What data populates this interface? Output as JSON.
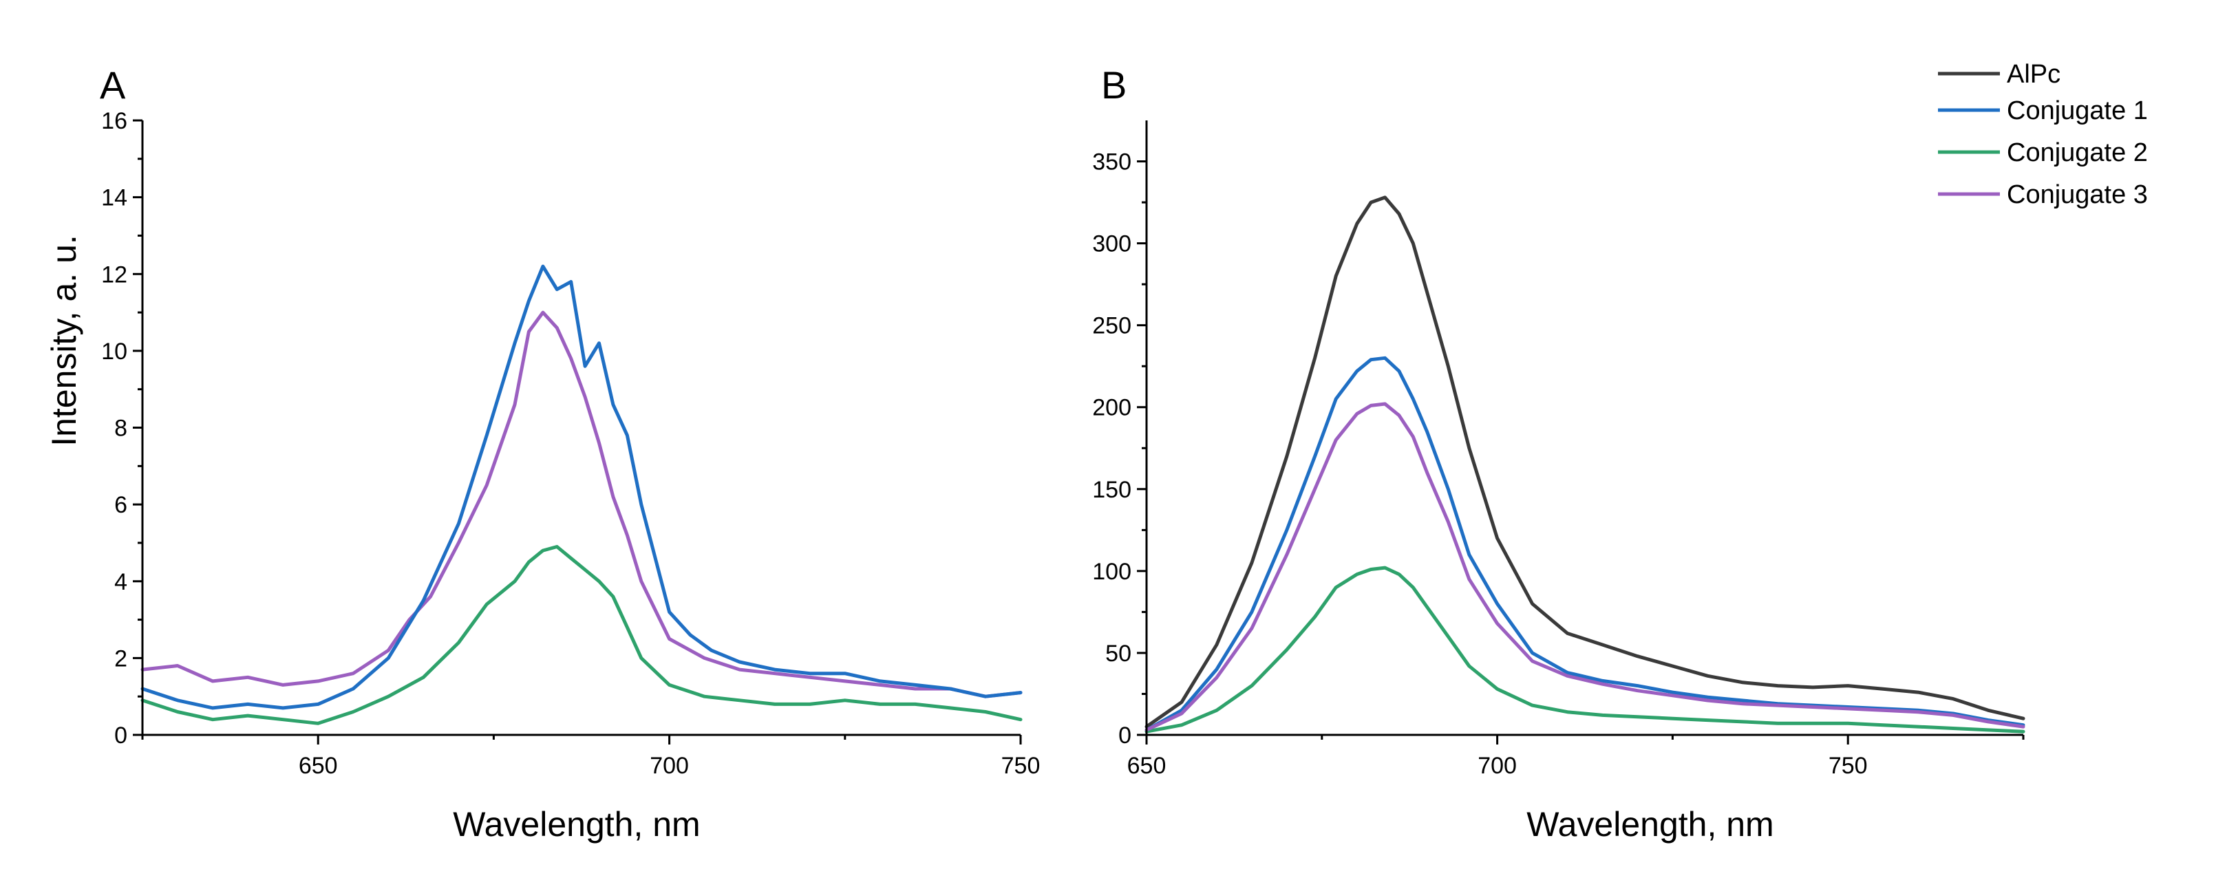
{
  "chart_data": [
    {
      "type": "line",
      "panel_label": "A",
      "xlabel": "Wavelength, nm",
      "ylabel": "Intensity, a. u.",
      "xlim": [
        625,
        750
      ],
      "ylim": [
        0,
        16
      ],
      "xticks": [
        650,
        700,
        750
      ],
      "yticks": [
        0,
        2,
        4,
        6,
        8,
        10,
        12,
        14,
        16
      ],
      "series": [
        {
          "name": "Conjugate 3",
          "color": "#9b5fc0",
          "x": [
            625,
            630,
            635,
            640,
            645,
            650,
            655,
            660,
            663,
            666,
            670,
            674,
            678,
            680,
            682,
            684,
            686,
            688,
            690,
            692,
            694,
            696,
            700,
            705,
            710,
            715,
            720,
            725,
            730,
            735,
            740,
            745,
            750
          ],
          "values": [
            1.7,
            1.8,
            1.4,
            1.5,
            1.3,
            1.4,
            1.6,
            2.2,
            3.0,
            3.6,
            5.0,
            6.5,
            8.6,
            10.5,
            11.0,
            10.6,
            9.8,
            8.8,
            7.6,
            6.2,
            5.2,
            4.0,
            2.5,
            2.0,
            1.7,
            1.6,
            1.5,
            1.4,
            1.3,
            1.2,
            1.2,
            1.0,
            1.1
          ]
        },
        {
          "name": "Conjugate 1",
          "color": "#1f6fc4",
          "x": [
            625,
            630,
            635,
            640,
            645,
            650,
            655,
            660,
            665,
            670,
            674,
            678,
            680,
            682,
            684,
            686,
            688,
            690,
            692,
            694,
            696,
            698,
            700,
            703,
            706,
            710,
            715,
            720,
            725,
            730,
            735,
            740,
            745,
            750
          ],
          "values": [
            1.2,
            0.9,
            0.7,
            0.8,
            0.7,
            0.8,
            1.2,
            2.0,
            3.5,
            5.5,
            7.8,
            10.2,
            11.3,
            12.2,
            11.6,
            11.8,
            9.6,
            10.2,
            8.6,
            7.8,
            6.0,
            4.6,
            3.2,
            2.6,
            2.2,
            1.9,
            1.7,
            1.6,
            1.6,
            1.4,
            1.3,
            1.2,
            1.0,
            1.1
          ]
        },
        {
          "name": "Conjugate 2",
          "color": "#2ea26b",
          "x": [
            625,
            630,
            635,
            640,
            645,
            650,
            655,
            660,
            665,
            670,
            674,
            678,
            680,
            682,
            684,
            686,
            688,
            690,
            692,
            694,
            696,
            700,
            705,
            710,
            715,
            720,
            725,
            730,
            735,
            740,
            745,
            750
          ],
          "values": [
            0.9,
            0.6,
            0.4,
            0.5,
            0.4,
            0.3,
            0.6,
            1.0,
            1.5,
            2.4,
            3.4,
            4.0,
            4.5,
            4.8,
            4.9,
            4.6,
            4.3,
            4.0,
            3.6,
            2.8,
            2.0,
            1.3,
            1.0,
            0.9,
            0.8,
            0.8,
            0.9,
            0.8,
            0.8,
            0.7,
            0.6,
            0.4
          ]
        }
      ]
    },
    {
      "type": "line",
      "panel_label": "B",
      "xlabel": "Wavelength, nm",
      "ylabel": "",
      "xlim": [
        650,
        775
      ],
      "ylim": [
        0,
        375
      ],
      "xticks": [
        650,
        700,
        750
      ],
      "yticks": [
        0,
        50,
        100,
        150,
        200,
        250,
        300,
        350
      ],
      "legend_position": "top-right",
      "series": [
        {
          "name": "AlPc",
          "color": "#3a3a3a",
          "x": [
            650,
            655,
            660,
            665,
            670,
            674,
            677,
            680,
            682,
            684,
            686,
            688,
            690,
            693,
            696,
            700,
            705,
            710,
            715,
            720,
            725,
            730,
            735,
            740,
            745,
            750,
            755,
            760,
            765,
            770,
            775
          ],
          "values": [
            5,
            20,
            55,
            105,
            170,
            230,
            280,
            312,
            325,
            328,
            318,
            300,
            270,
            225,
            175,
            120,
            80,
            62,
            55,
            48,
            42,
            36,
            32,
            30,
            29,
            30,
            28,
            26,
            22,
            15,
            10
          ]
        },
        {
          "name": "Conjugate 1",
          "color": "#1f6fc4",
          "x": [
            650,
            655,
            660,
            665,
            670,
            674,
            677,
            680,
            682,
            684,
            686,
            688,
            690,
            693,
            696,
            700,
            705,
            710,
            715,
            720,
            725,
            730,
            735,
            740,
            745,
            750,
            755,
            760,
            765,
            770,
            775
          ],
          "values": [
            3,
            15,
            40,
            75,
            125,
            170,
            205,
            222,
            229,
            230,
            222,
            205,
            185,
            150,
            110,
            80,
            50,
            38,
            33,
            30,
            26,
            23,
            21,
            19,
            18,
            17,
            16,
            15,
            13,
            9,
            6
          ]
        },
        {
          "name": "Conjugate 2",
          "color": "#2ea26b",
          "x": [
            650,
            655,
            660,
            665,
            670,
            674,
            677,
            680,
            682,
            684,
            686,
            688,
            690,
            693,
            696,
            700,
            705,
            710,
            715,
            720,
            725,
            730,
            735,
            740,
            745,
            750,
            755,
            760,
            765,
            770,
            775
          ],
          "values": [
            2,
            6,
            15,
            30,
            52,
            72,
            90,
            98,
            101,
            102,
            98,
            90,
            78,
            60,
            42,
            28,
            18,
            14,
            12,
            11,
            10,
            9,
            8,
            7,
            7,
            7,
            6,
            5,
            4,
            3,
            2
          ]
        },
        {
          "name": "Conjugate 3",
          "color": "#9b5fc0",
          "x": [
            650,
            655,
            660,
            665,
            670,
            674,
            677,
            680,
            682,
            684,
            686,
            688,
            690,
            693,
            696,
            700,
            705,
            710,
            715,
            720,
            725,
            730,
            735,
            740,
            745,
            750,
            755,
            760,
            765,
            770,
            775
          ],
          "values": [
            3,
            13,
            35,
            65,
            110,
            150,
            180,
            196,
            201,
            202,
            195,
            182,
            160,
            130,
            95,
            68,
            45,
            36,
            31,
            27,
            24,
            21,
            19,
            18,
            17,
            16,
            15,
            14,
            12,
            8,
            5
          ]
        }
      ]
    }
  ]
}
